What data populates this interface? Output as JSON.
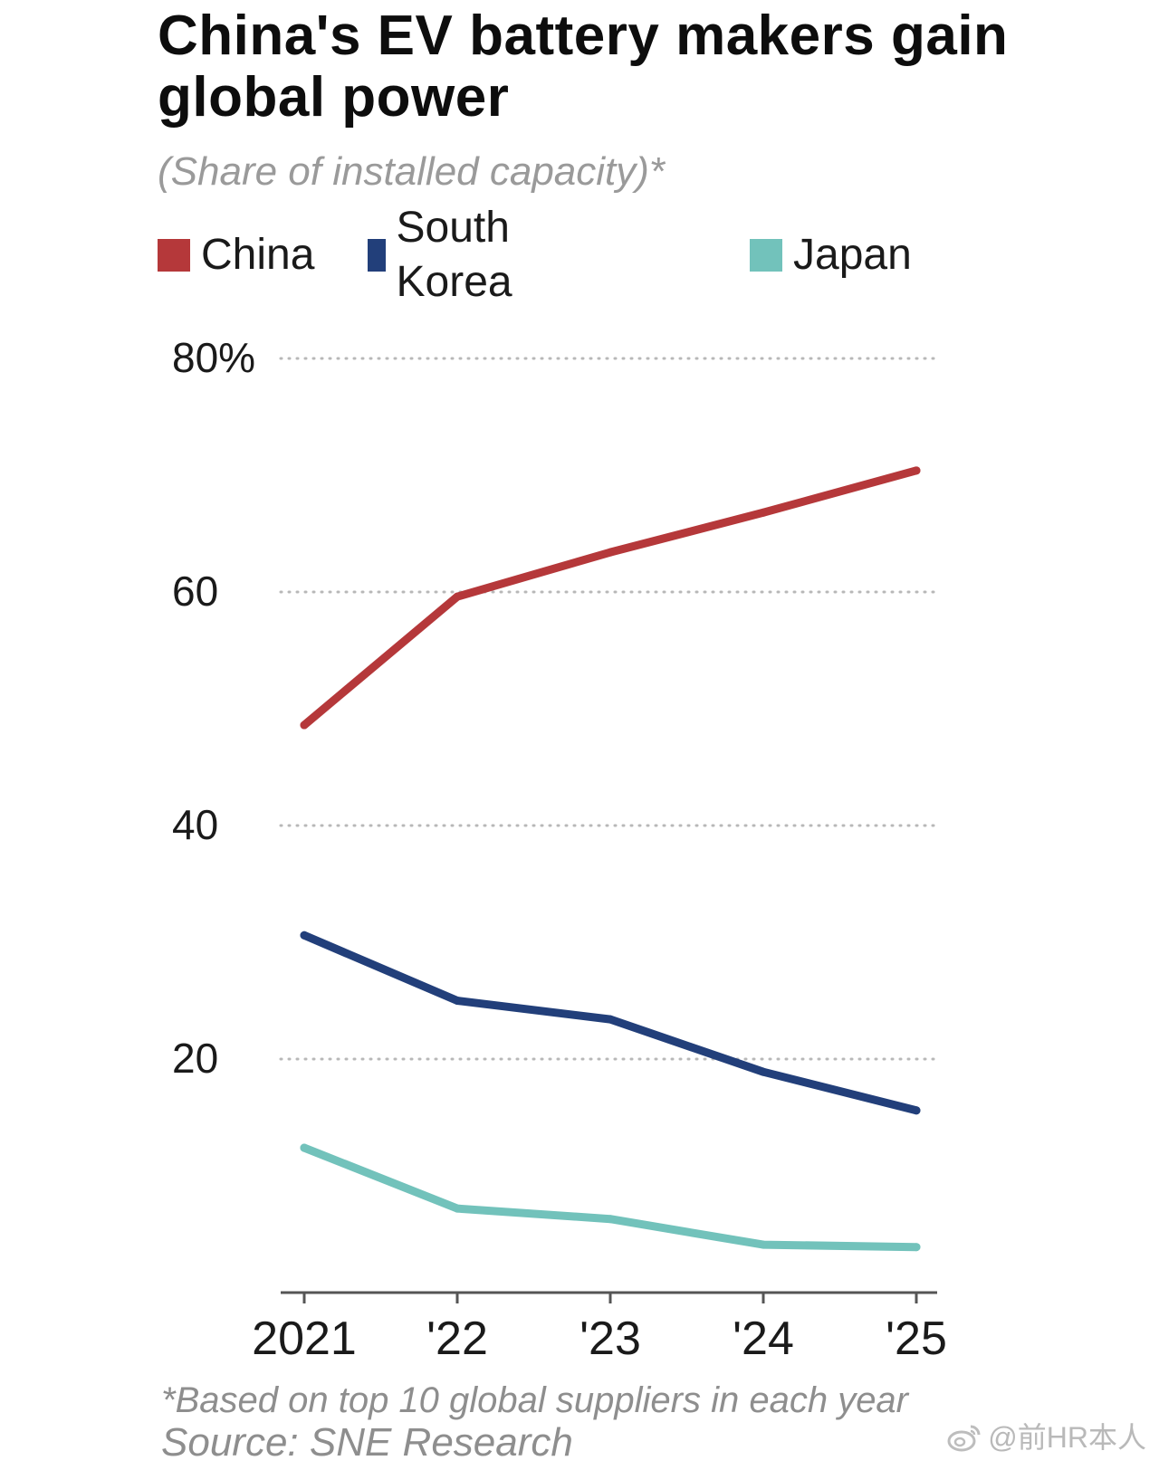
{
  "header": {
    "title": "China's EV battery makers gain global power",
    "subtitle": "(Share of installed capacity)*"
  },
  "legend": {
    "items": [
      {
        "label": "China",
        "color": "#b5383a"
      },
      {
        "label": "South Korea",
        "color": "#223f7a"
      },
      {
        "label": "Japan",
        "color": "#72c2bb"
      }
    ]
  },
  "footer": {
    "footnote": "*Based on top 10 global suppliers in each year",
    "source": "Source: SNE Research"
  },
  "watermark": {
    "text": "@前HR本人",
    "icon": "weibo-icon"
  },
  "chart_data": {
    "type": "line",
    "title": "China's EV battery makers gain global power",
    "subtitle": "(Share of installed capacity)*",
    "xlabel": "",
    "ylabel": "",
    "categories": [
      "2021",
      "'22",
      "'23",
      "'24",
      "'25"
    ],
    "ylim": [
      0,
      80
    ],
    "yticks": [
      20,
      40,
      60,
      80
    ],
    "ytick_labels": [
      "20",
      "40",
      "60",
      "80%"
    ],
    "grid": "dotted horizontal",
    "legend_position": "top",
    "series": [
      {
        "name": "China",
        "color": "#b5383a",
        "values": [
          48.6,
          59.6,
          63.4,
          66.8,
          70.4
        ]
      },
      {
        "name": "South Korea",
        "color": "#223f7a",
        "values": [
          30.6,
          25.0,
          23.4,
          18.9,
          15.6
        ]
      },
      {
        "name": "Japan",
        "color": "#72c2bb",
        "values": [
          12.4,
          7.2,
          6.3,
          4.1,
          3.9
        ]
      }
    ]
  }
}
